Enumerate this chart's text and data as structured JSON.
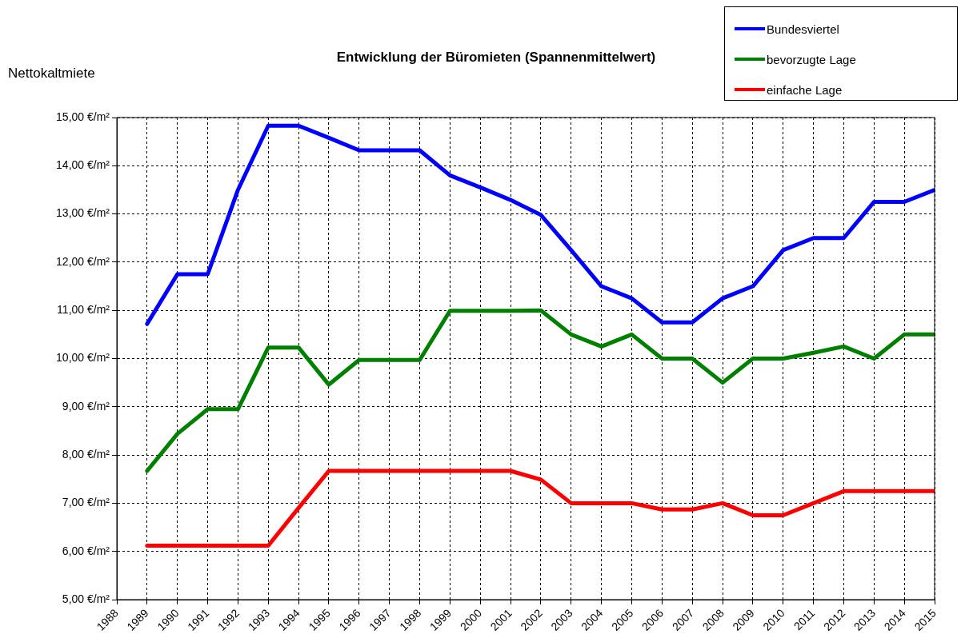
{
  "chart_data": {
    "type": "line",
    "title": "Entwicklung der Büromieten (Spannenmittelwert)",
    "ylabel": "Nettokaltmiete",
    "x": [
      1989,
      1990,
      1991,
      1992,
      1993,
      1994,
      1995,
      1996,
      1997,
      1998,
      1999,
      2000,
      2001,
      2002,
      2003,
      2004,
      2005,
      2006,
      2007,
      2008,
      2009,
      2010,
      2011,
      2012,
      2013,
      2014,
      2015
    ],
    "series": [
      {
        "name": "Bundesviertel",
        "color": "#0000ff",
        "values": [
          10.72,
          11.75,
          11.75,
          13.5,
          14.83,
          14.83,
          14.58,
          14.32,
          14.32,
          14.32,
          13.8,
          13.55,
          13.29,
          12.98,
          12.25,
          11.5,
          11.25,
          10.75,
          10.75,
          11.25,
          11.5,
          12.25,
          12.5,
          12.5,
          13.25,
          13.25,
          13.5
        ]
      },
      {
        "name": "bevorzugte Lage",
        "color": "#008000",
        "values": [
          7.67,
          8.44,
          8.95,
          8.95,
          10.23,
          10.23,
          9.46,
          9.97,
          9.97,
          9.97,
          10.99,
          10.99,
          10.99,
          11.0,
          10.5,
          10.25,
          10.5,
          10.0,
          10.0,
          9.5,
          10.0,
          10.0,
          10.12,
          10.25,
          10.0,
          10.5,
          10.5
        ]
      },
      {
        "name": "einfache Lage",
        "color": "#ff0000",
        "values": [
          6.12,
          6.12,
          6.12,
          6.12,
          6.12,
          6.9,
          7.67,
          7.67,
          7.67,
          7.67,
          7.67,
          7.67,
          7.67,
          7.49,
          7.0,
          7.0,
          7.0,
          6.87,
          6.87,
          7.0,
          6.75,
          6.75,
          7.0,
          7.25,
          7.25,
          7.25,
          7.25
        ]
      }
    ],
    "xlim": [
      1988,
      2015
    ],
    "xticks": [
      1988,
      1989,
      1990,
      1991,
      1992,
      1993,
      1994,
      1995,
      1996,
      1997,
      1998,
      1999,
      2000,
      2001,
      2002,
      2003,
      2004,
      2005,
      2006,
      2007,
      2008,
      2009,
      2010,
      2011,
      2012,
      2013,
      2014,
      2015
    ],
    "ylim": [
      5,
      15
    ],
    "yticks": [
      {
        "value": 5,
        "label": "5,00 €/m²"
      },
      {
        "value": 6,
        "label": "6,00 €/m²"
      },
      {
        "value": 7,
        "label": "7,00 €/m²"
      },
      {
        "value": 8,
        "label": "8,00 €/m²"
      },
      {
        "value": 9,
        "label": "9,00 €/m²"
      },
      {
        "value": 10,
        "label": "10,00 €/m²"
      },
      {
        "value": 11,
        "label": "11,00 €/m²"
      },
      {
        "value": 12,
        "label": "12,00 €/m²"
      },
      {
        "value": 13,
        "label": "13,00 €/m²"
      },
      {
        "value": 14,
        "label": "14,00 €/m²"
      },
      {
        "value": 15,
        "label": "15,00 €/m²"
      }
    ],
    "grid": true,
    "legend": "top right",
    "marker": "none",
    "line_style": "solid"
  }
}
